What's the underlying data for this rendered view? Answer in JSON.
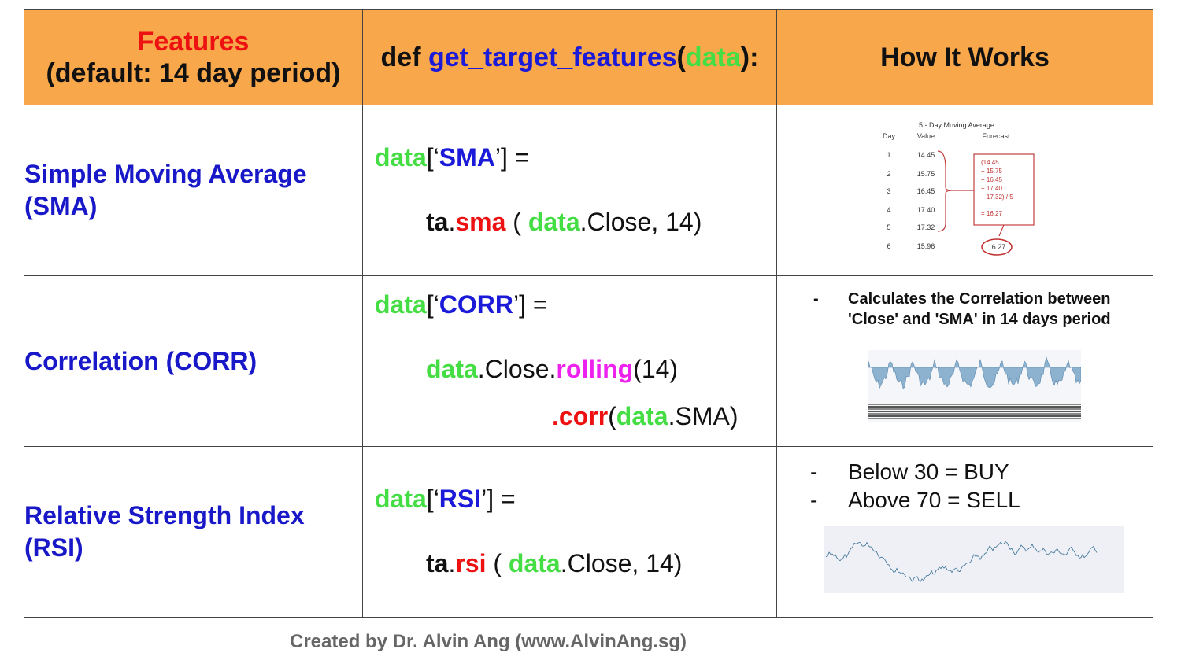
{
  "header": {
    "features_title": "Features",
    "features_sub": "(default: 14 day period)",
    "def_kw": "def",
    "func_name": "get_target_features",
    "paren_open": "(",
    "arg": "data",
    "paren_close": "):",
    "how": "How It Works"
  },
  "rows": [
    {
      "feature": [
        "Simple Moving Average",
        "(SMA)"
      ],
      "code": {
        "data": "data",
        "lb": "[‘",
        "key": "SMA",
        "rb": "’] =",
        "ta": "ta",
        "dot": ".",
        "fn": "sma",
        "open": " ( ",
        "data2": "data",
        "tail": ".Close, 14)"
      },
      "table": {
        "title": [
          "5 - Day Moving Average",
          "Forecast"
        ],
        "col_day": "Day",
        "col_value": "Value",
        "days": [
          "1",
          "2",
          "3",
          "4",
          "5",
          "6"
        ],
        "values": [
          "14.45",
          "15.75",
          "16.45",
          "17.40",
          "17.32",
          "15.96"
        ],
        "calc": [
          "(14.45",
          "+ 15.75",
          "+ 16.45",
          "+ 17.40",
          "+ 17.32) / 5",
          "= 16.27"
        ],
        "result": "16.27"
      }
    },
    {
      "feature": [
        "Correlation (CORR)"
      ],
      "code": {
        "data": "data",
        "lb": "[‘",
        "key": "CORR",
        "rb": "’] =",
        "data2": "data",
        "mid": ".Close.",
        "roll": "rolling",
        "rollarg": "(14)",
        "corr": ".corr",
        "cp": "(",
        "data3": "data",
        "end": ".SMA)"
      },
      "note_dash": "-",
      "note": [
        "Calculates the Correlation between",
        "'Close' and 'SMA' in 14 days period"
      ]
    },
    {
      "feature": [
        "Relative Strength Index",
        "(RSI)"
      ],
      "code": {
        "data": "data",
        "lb": "[‘",
        "key": "RSI",
        "rb": "’] =",
        "ta": "ta",
        "dot": ".",
        "fn": "rsi",
        "open": " ( ",
        "data2": "data",
        "tail": ".Close, 14)"
      },
      "notes": [
        {
          "dash": "-",
          "text": "Below 30 = BUY"
        },
        {
          "dash": "-",
          "text": "Above 70 = SELL"
        }
      ]
    }
  ],
  "footer": "Created by Dr. Alvin Ang (www.AlvinAng.sg)",
  "colors": {
    "header_bg": "#f8a84a",
    "feature_blue": "#1818c8",
    "code_green": "#44dd44",
    "code_red": "#ee1111",
    "code_magenta": "#ee22ee"
  }
}
